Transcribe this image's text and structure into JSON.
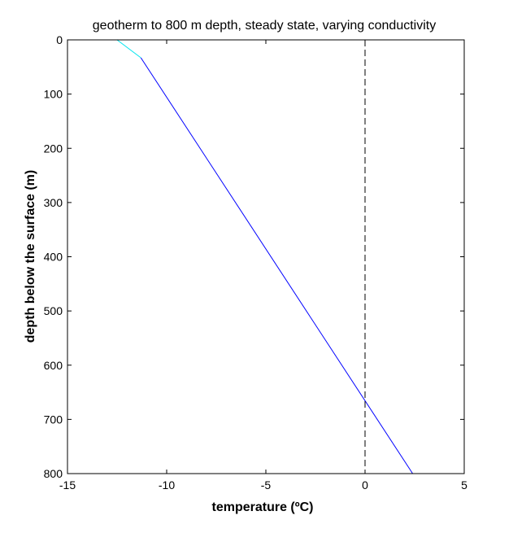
{
  "chart_data": {
    "type": "line",
    "title": "geotherm to 800 m depth, steady state, varying conductivity",
    "xlabel": "temperature (ºC)",
    "ylabel": "depth below the surface (m)",
    "xlim": [
      -15,
      5
    ],
    "ylim": [
      0,
      800
    ],
    "y_reversed": true,
    "xticks": [
      -15,
      -10,
      -5,
      0,
      5
    ],
    "yticks": [
      0,
      100,
      200,
      300,
      400,
      500,
      600,
      700,
      800
    ],
    "grid": false,
    "legend": "none",
    "series": [
      {
        "color": "#00e5ee",
        "style": "solid",
        "x": [
          -12.5,
          -11.3
        ],
        "y": [
          0,
          33
        ]
      },
      {
        "color": "#0000ff",
        "style": "solid",
        "x": [
          -11.3,
          2.4
        ],
        "y": [
          33,
          800
        ]
      },
      {
        "color": "#000000",
        "style": "dashed",
        "x": [
          0,
          0
        ],
        "y": [
          0,
          800
        ]
      }
    ]
  }
}
